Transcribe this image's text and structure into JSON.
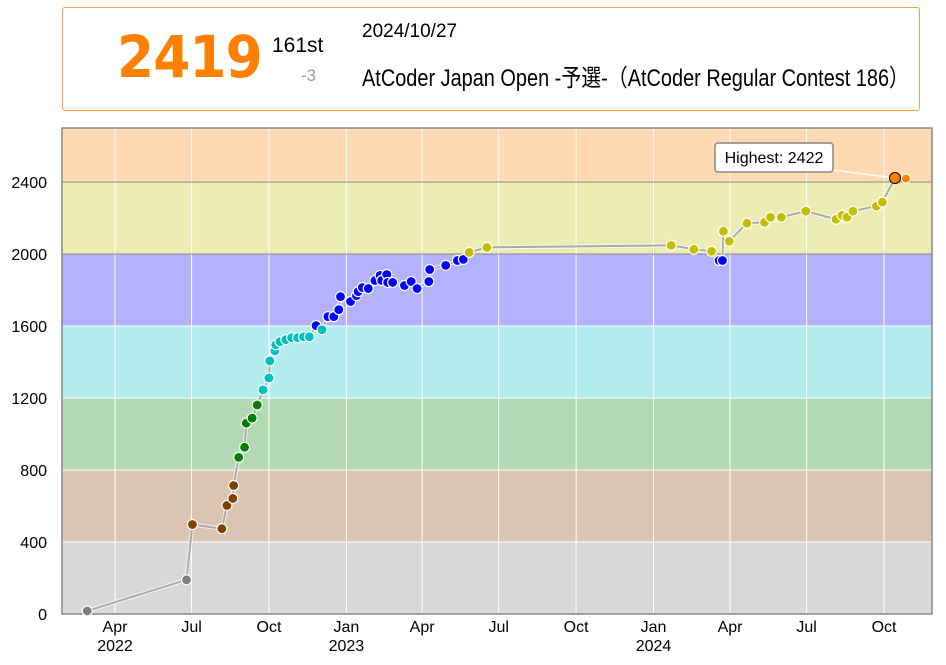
{
  "header": {
    "rating": "2419",
    "rank": "161st",
    "diff": "-3",
    "date": "2024/10/27",
    "contest": "AtCoder Japan Open -予選-（AtCoder Regular Contest 186）"
  },
  "colors": {
    "accent": "#FF8000",
    "ranks": [
      {
        "min": 0,
        "max": 400,
        "point": "#808080",
        "band": "#D8D8D8"
      },
      {
        "min": 400,
        "max": 800,
        "point": "#804000",
        "band": "#D9C5B2"
      },
      {
        "min": 800,
        "max": 1200,
        "point": "#008000",
        "band": "#B2D9B2"
      },
      {
        "min": 1200,
        "max": 1600,
        "point": "#00C0C0",
        "band": "#B2ECEC"
      },
      {
        "min": 1600,
        "max": 2000,
        "point": "#0000FF",
        "band": "#B2B2FF"
      },
      {
        "min": 2000,
        "max": 2400,
        "point": "#C0C000",
        "band": "#ECECB2"
      },
      {
        "min": 2400,
        "max": 2800,
        "point": "#FF8000",
        "band": "#FFD9B2"
      }
    ]
  },
  "chart_data": {
    "type": "line",
    "title": "",
    "xlabel": "",
    "ylabel": "",
    "xlim": [
      "2022-01-28",
      "2024-11-27"
    ],
    "ylim": [
      0,
      2700
    ],
    "grid": true,
    "yticks": [
      0,
      400,
      800,
      1200,
      1600,
      2000,
      2400
    ],
    "xticks": [
      {
        "date": "2022-04-01",
        "label": "Apr",
        "year": "2022"
      },
      {
        "date": "2022-07-01",
        "label": "Jul",
        "year": ""
      },
      {
        "date": "2022-10-01",
        "label": "Oct",
        "year": ""
      },
      {
        "date": "2023-01-01",
        "label": "Jan",
        "year": "2023"
      },
      {
        "date": "2023-04-01",
        "label": "Apr",
        "year": ""
      },
      {
        "date": "2023-07-01",
        "label": "Jul",
        "year": ""
      },
      {
        "date": "2023-10-01",
        "label": "Oct",
        "year": ""
      },
      {
        "date": "2024-01-01",
        "label": "Jan",
        "year": "2024"
      },
      {
        "date": "2024-04-01",
        "label": "Apr",
        "year": ""
      },
      {
        "date": "2024-07-01",
        "label": "Jul",
        "year": ""
      },
      {
        "date": "2024-10-01",
        "label": "Oct",
        "year": ""
      }
    ],
    "points": [
      [
        "2022-02-27",
        17
      ],
      [
        "2022-06-25",
        190
      ],
      [
        "2022-07-02",
        497
      ],
      [
        "2022-08-06",
        474
      ],
      [
        "2022-08-12",
        603
      ],
      [
        "2022-08-19",
        642
      ],
      [
        "2022-08-20",
        714
      ],
      [
        "2022-08-26",
        870
      ],
      [
        "2022-09-02",
        926
      ],
      [
        "2022-09-04",
        1060
      ],
      [
        "2022-09-11",
        1088
      ],
      [
        "2022-09-17",
        1161
      ],
      [
        "2022-09-24",
        1245
      ],
      [
        "2022-10-01",
        1311
      ],
      [
        "2022-10-02",
        1406
      ],
      [
        "2022-10-08",
        1462
      ],
      [
        "2022-10-09",
        1496
      ],
      [
        "2022-10-14",
        1513
      ],
      [
        "2022-10-21",
        1524
      ],
      [
        "2022-10-28",
        1535
      ],
      [
        "2022-11-04",
        1535
      ],
      [
        "2022-11-11",
        1540
      ],
      [
        "2022-11-18",
        1540
      ],
      [
        "2022-11-26",
        1602
      ],
      [
        "2022-12-03",
        1579
      ],
      [
        "2022-12-10",
        1652
      ],
      [
        "2022-12-17",
        1652
      ],
      [
        "2022-12-23",
        1691
      ],
      [
        "2022-12-25",
        1763
      ],
      [
        "2023-01-06",
        1736
      ],
      [
        "2023-01-13",
        1769
      ],
      [
        "2023-01-15",
        1791
      ],
      [
        "2023-01-20",
        1814
      ],
      [
        "2023-01-27",
        1808
      ],
      [
        "2023-02-04",
        1853
      ],
      [
        "2023-02-10",
        1881
      ],
      [
        "2023-02-12",
        1853
      ],
      [
        "2023-02-18",
        1886
      ],
      [
        "2023-02-19",
        1842
      ],
      [
        "2023-02-25",
        1842
      ],
      [
        "2023-03-11",
        1825
      ],
      [
        "2023-03-19",
        1847
      ],
      [
        "2023-03-26",
        1808
      ],
      [
        "2023-04-09",
        1847
      ],
      [
        "2023-04-10",
        1914
      ],
      [
        "2023-04-29",
        1937
      ],
      [
        "2023-05-13",
        1964
      ],
      [
        "2023-05-20",
        1970
      ],
      [
        "2023-05-27",
        2009
      ],
      [
        "2023-06-17",
        2037
      ],
      [
        "2024-01-22",
        2048
      ],
      [
        "2024-02-18",
        2026
      ],
      [
        "2024-03-10",
        2015
      ],
      [
        "2024-03-19",
        1964
      ],
      [
        "2024-03-23",
        1964
      ],
      [
        "2024-03-24",
        2126
      ],
      [
        "2024-03-31",
        2071
      ],
      [
        "2024-04-21",
        2171
      ],
      [
        "2024-05-12",
        2176
      ],
      [
        "2024-05-19",
        2204
      ],
      [
        "2024-06-01",
        2204
      ],
      [
        "2024-06-30",
        2238
      ],
      [
        "2024-08-05",
        2193
      ],
      [
        "2024-08-12",
        2215
      ],
      [
        "2024-08-18",
        2204
      ],
      [
        "2024-08-25",
        2238
      ],
      [
        "2024-09-22",
        2266
      ],
      [
        "2024-09-29",
        2288
      ],
      [
        "2024-10-14",
        2422
      ]
    ],
    "current_point": [
      "2024-10-27",
      2419
    ],
    "annotation": {
      "label": "Highest: 2422",
      "date": "2024-10-14",
      "value": 2422
    }
  }
}
